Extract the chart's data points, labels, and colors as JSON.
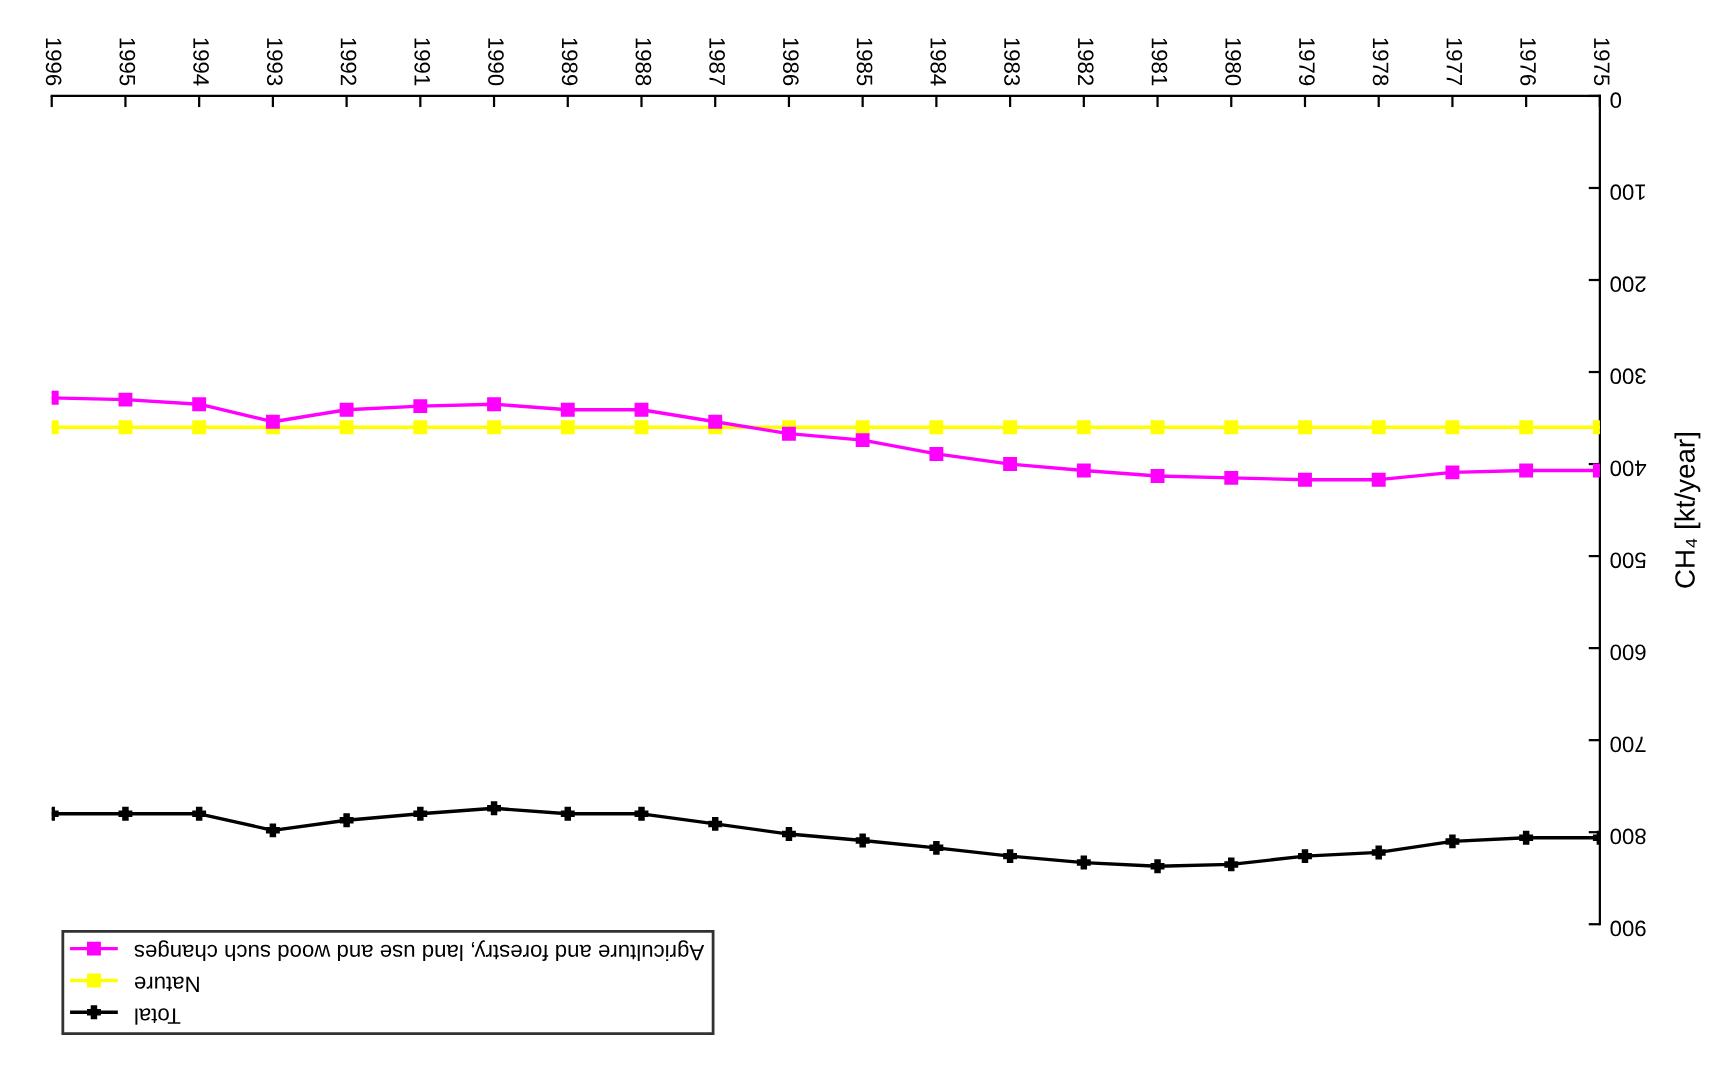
{
  "chart_data": {
    "type": "line",
    "ylabel": "CH₄ [kt/year]",
    "x": [
      1996,
      1995,
      1994,
      1993,
      1992,
      1991,
      1990,
      1989,
      1988,
      1987,
      1986,
      1985,
      1984,
      1983,
      1982,
      1981,
      1980,
      1979,
      1978,
      1977,
      1976,
      1975
    ],
    "xlim": [
      1996,
      1975
    ],
    "xticks": [
      1996,
      1995,
      1994,
      1993,
      1992,
      1991,
      1990,
      1989,
      1988,
      1987,
      1986,
      1985,
      1984,
      1983,
      1982,
      1981,
      1980,
      1979,
      1978,
      1977,
      1976,
      1975
    ],
    "ylim": [
      900,
      0
    ],
    "yticks": [
      0,
      100,
      200,
      300,
      400,
      500,
      600,
      700,
      800,
      900
    ],
    "grid": false,
    "legend": "bottom left",
    "series": [
      {
        "name": "Agriculture and forestry, land use and wood such changes",
        "color": "#ff00ff",
        "marker": "square",
        "values": [
          328,
          330,
          335,
          354,
          341,
          337,
          335,
          341,
          341,
          354,
          367,
          374,
          389,
          400,
          407,
          413,
          415,
          417,
          417,
          409,
          407,
          407
        ]
      },
      {
        "name": "Nature",
        "color": "#ffff00",
        "marker": "square",
        "values": [
          360,
          360,
          360,
          360,
          360,
          360,
          360,
          360,
          360,
          360,
          360,
          360,
          360,
          360,
          360,
          360,
          360,
          360,
          360,
          360,
          360,
          360
        ]
      },
      {
        "name": "Total",
        "color": "#000000",
        "marker": "cross",
        "values": [
          780,
          780,
          780,
          798,
          787,
          780,
          774,
          780,
          780,
          791,
          802,
          809,
          817,
          826,
          833,
          837,
          835,
          826,
          822,
          810,
          806,
          806
        ]
      }
    ]
  }
}
